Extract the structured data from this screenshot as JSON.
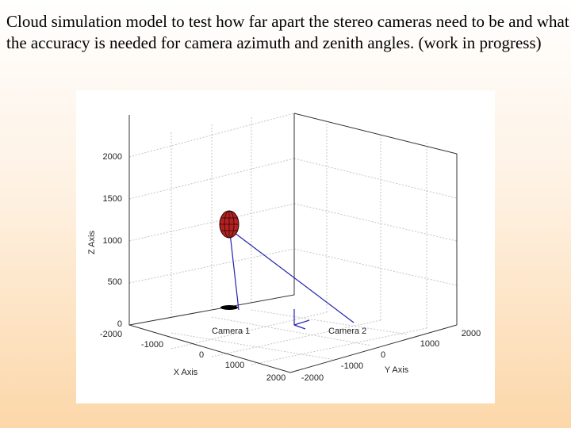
{
  "caption": "Cloud simulation model to test how far apart the stereo cameras need to be and what the accuracy is needed for camera azimuth and zenith angles. (work in progress)",
  "figure": {
    "axes": {
      "z_label": "Z Axis",
      "x_label": "X Axis",
      "y_label": "Y Axis",
      "z_ticks": [
        "0",
        "500",
        "1000",
        "1500",
        "2000"
      ],
      "x_ticks": [
        "-2000",
        "-1000",
        "0",
        "1000",
        "2000"
      ],
      "y_ticks": [
        "-2000",
        "-1000",
        "0",
        "1000",
        "2000"
      ]
    },
    "labels": {
      "camera1": "Camera 1",
      "camera2": "Camera 2"
    },
    "colors": {
      "cloud": "#b22222",
      "cloud_mesh": "#2a0000",
      "ray_line": "#2323b0",
      "axes_box": "#333333"
    }
  }
}
